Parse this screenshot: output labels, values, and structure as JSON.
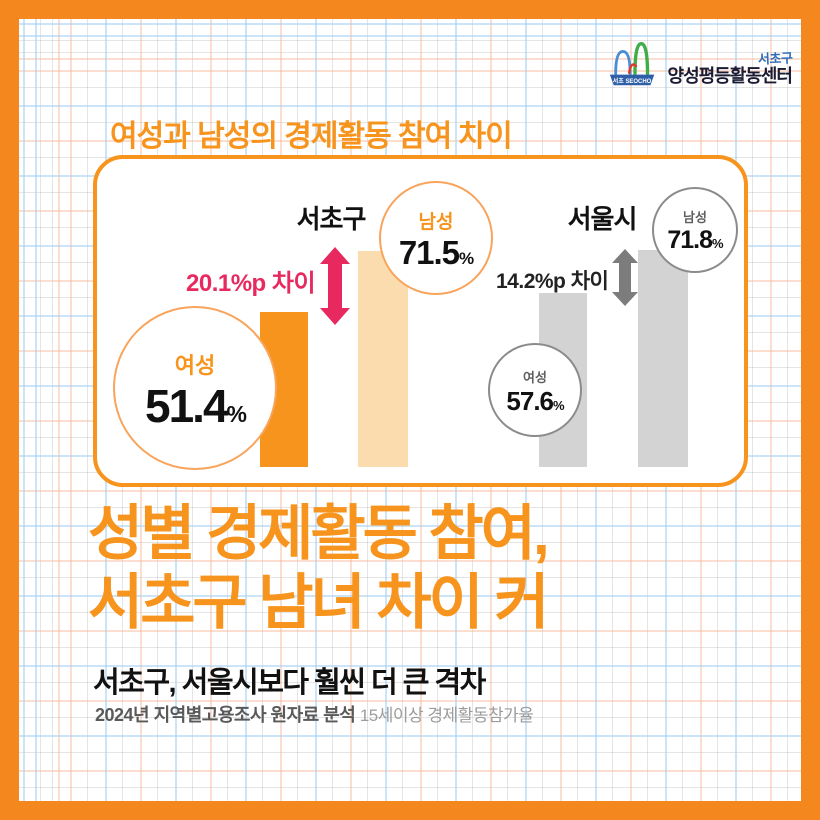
{
  "logo": {
    "mark_label": "서초 SEOCHO",
    "district": "서초구",
    "center_name": "양성평등활동센터"
  },
  "kicker": "여성과 남성의 경제활동 참여 차이",
  "chart_data": {
    "type": "bar",
    "title": "여성과 남성의 경제활동 참여 차이",
    "unit": "%",
    "categories": [
      "서초구",
      "서울시"
    ],
    "series": [
      {
        "name": "여성",
        "values": [
          51.4,
          57.6
        ]
      },
      {
        "name": "남성",
        "values": [
          71.5,
          71.8
        ]
      }
    ],
    "gaps": [
      {
        "category": "서초구",
        "label": "20.1%p 차이",
        "value_pp": 20.1
      },
      {
        "category": "서울시",
        "label": "14.2%p 차이",
        "value_pp": 14.2
      }
    ],
    "ylim": [
      0,
      80
    ],
    "grid": false,
    "legend_position": "none"
  },
  "headline": {
    "line1": "성별 경제활동 참여,",
    "line2": "서초구 남녀 차이 커"
  },
  "subtitle": "서초구, 서울시보다 훨씬 더 큰 격차",
  "source": {
    "primary": "2024년 지역별고용조사 원자료 분석",
    "secondary": "15세이상 경제활동참가율"
  },
  "colors": {
    "frame_orange": "#F5871F",
    "accent_orange": "#F7941D",
    "light_orange_bar": "#FBDCAE",
    "pink_arrow": "#E8295F",
    "gray_bar": "#D3D3D3",
    "gray_arrow": "#7C7C7C",
    "logo_blue": "#2F6DB8",
    "logo_green": "#3FAE49",
    "logo_red": "#E0392B",
    "logo_navy": "#1B1B33"
  }
}
